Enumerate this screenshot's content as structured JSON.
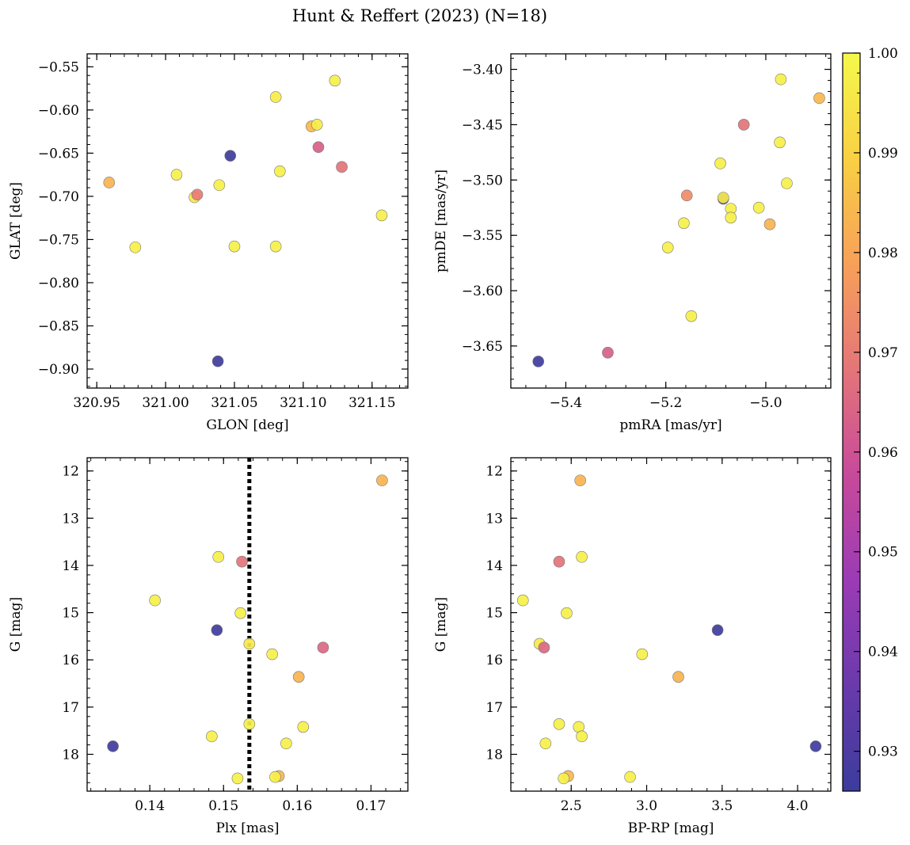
{
  "figure": {
    "title": "Hunt & Reffert (2023) (N=18)"
  },
  "colorbar": {
    "label": "",
    "range": [
      0.926,
      1.0
    ],
    "ticks": [
      "0.93",
      "0.94",
      "0.95",
      "0.96",
      "0.97",
      "0.98",
      "0.99",
      "1.00"
    ],
    "tick_values": [
      0.93,
      0.94,
      0.95,
      0.96,
      0.97,
      0.98,
      0.99,
      1.0
    ],
    "colormap": "plasma",
    "stops": [
      "#3b3c9c",
      "#6a3aab",
      "#9b3bb5",
      "#c74a9a",
      "#e47579",
      "#f7a059",
      "#f9d043",
      "#f5f84c"
    ]
  },
  "chart_data": [
    {
      "id": "glon_glat",
      "type": "scatter",
      "title": "",
      "xlabel": "GLON [deg]",
      "ylabel": "GLAT [deg]",
      "xlim": [
        320.943,
        321.176
      ],
      "ylim": [
        -0.922,
        -0.535
      ],
      "y_inverted": false,
      "xticks": [
        "320.95",
        "321.00",
        "321.05",
        "321.10",
        "321.15"
      ],
      "xtick_values": [
        320.95,
        321.0,
        321.05,
        321.1,
        321.15
      ],
      "yticks": [
        "−0.55",
        "−0.60",
        "−0.65",
        "−0.70",
        "−0.75",
        "−0.80",
        "−0.85",
        "−0.90"
      ],
      "ytick_values": [
        -0.55,
        -0.6,
        -0.65,
        -0.7,
        -0.75,
        -0.8,
        -0.85,
        -0.9
      ],
      "points": [
        {
          "x": 320.959,
          "y": -0.684,
          "c": 0.983
        },
        {
          "x": 320.978,
          "y": -0.759,
          "c": 0.998
        },
        {
          "x": 321.008,
          "y": -0.675,
          "c": 0.998
        },
        {
          "x": 321.021,
          "y": -0.701,
          "c": 0.996
        },
        {
          "x": 321.023,
          "y": -0.698,
          "c": 0.97
        },
        {
          "x": 321.039,
          "y": -0.687,
          "c": 0.998
        },
        {
          "x": 321.047,
          "y": -0.653,
          "c": 0.927
        },
        {
          "x": 321.05,
          "y": -0.758,
          "c": 0.998
        },
        {
          "x": 321.038,
          "y": -0.891,
          "c": 0.927
        },
        {
          "x": 321.08,
          "y": -0.585,
          "c": 0.997
        },
        {
          "x": 321.083,
          "y": -0.671,
          "c": 0.998
        },
        {
          "x": 321.08,
          "y": -0.758,
          "c": 0.998
        },
        {
          "x": 321.106,
          "y": -0.619,
          "c": 0.984
        },
        {
          "x": 321.11,
          "y": -0.617,
          "c": 0.997
        },
        {
          "x": 321.111,
          "y": -0.643,
          "c": 0.963
        },
        {
          "x": 321.123,
          "y": -0.566,
          "c": 0.998
        },
        {
          "x": 321.128,
          "y": -0.666,
          "c": 0.968
        },
        {
          "x": 321.157,
          "y": -0.722,
          "c": 0.998
        }
      ]
    },
    {
      "id": "pm",
      "type": "scatter",
      "title": "",
      "xlabel": "pmRA [mas/yr]",
      "ylabel": "pmDE [mas/yr]",
      "xlim": [
        -5.51,
        -4.87
      ],
      "ylim": [
        -3.688,
        -3.386
      ],
      "y_inverted": false,
      "xticks": [
        "−5.4",
        "−5.2",
        "−5.0"
      ],
      "xtick_values": [
        -5.4,
        -5.2,
        -5.0
      ],
      "yticks": [
        "−3.40",
        "−3.45",
        "−3.50",
        "−3.55",
        "−3.60",
        "−3.65"
      ],
      "ytick_values": [
        -3.4,
        -3.45,
        -3.5,
        -3.55,
        -3.6,
        -3.65
      ],
      "points": [
        {
          "x": -5.455,
          "y": -3.664,
          "c": 0.927
        },
        {
          "x": -5.316,
          "y": -3.656,
          "c": 0.963
        },
        {
          "x": -5.196,
          "y": -3.561,
          "c": 0.998
        },
        {
          "x": -5.164,
          "y": -3.539,
          "c": 0.998
        },
        {
          "x": -5.158,
          "y": -3.514,
          "c": 0.974
        },
        {
          "x": -5.149,
          "y": -3.623,
          "c": 0.998
        },
        {
          "x": -5.091,
          "y": -3.485,
          "c": 0.998
        },
        {
          "x": -5.085,
          "y": -3.517,
          "c": 0.927
        },
        {
          "x": -5.085,
          "y": -3.516,
          "c": 0.996
        },
        {
          "x": -5.07,
          "y": -3.526,
          "c": 0.998
        },
        {
          "x": -5.07,
          "y": -3.534,
          "c": 0.998
        },
        {
          "x": -5.044,
          "y": -3.45,
          "c": 0.968
        },
        {
          "x": -5.014,
          "y": -3.525,
          "c": 0.998
        },
        {
          "x": -4.992,
          "y": -3.54,
          "c": 0.983
        },
        {
          "x": -4.97,
          "y": -3.409,
          "c": 0.998
        },
        {
          "x": -4.972,
          "y": -3.466,
          "c": 0.998
        },
        {
          "x": -4.958,
          "y": -3.503,
          "c": 0.998
        },
        {
          "x": -4.893,
          "y": -3.426,
          "c": 0.984
        }
      ]
    },
    {
      "id": "plx_g",
      "type": "scatter",
      "title": "",
      "xlabel": "Plx [mas]",
      "ylabel": "G [mag]",
      "xlim": [
        0.1315,
        0.175
      ],
      "ylim": [
        18.78,
        11.72
      ],
      "y_inverted": true,
      "xticks": [
        "0.14",
        "0.15",
        "0.16",
        "0.17"
      ],
      "xtick_values": [
        0.14,
        0.15,
        0.16,
        0.17
      ],
      "yticks": [
        "12",
        "13",
        "14",
        "15",
        "16",
        "17",
        "18"
      ],
      "ytick_values": [
        12,
        13,
        14,
        15,
        16,
        17,
        18
      ],
      "vline": {
        "x": 0.1535,
        "style": "dotted"
      },
      "points": [
        {
          "x": 0.1715,
          "y": 12.2,
          "c": 0.983
        },
        {
          "x": 0.1493,
          "y": 13.82,
          "c": 0.998
        },
        {
          "x": 0.1525,
          "y": 13.92,
          "c": 0.968
        },
        {
          "x": 0.1407,
          "y": 14.74,
          "c": 0.998
        },
        {
          "x": 0.1523,
          "y": 15.01,
          "c": 0.998
        },
        {
          "x": 0.1491,
          "y": 15.37,
          "c": 0.927
        },
        {
          "x": 0.1535,
          "y": 15.66,
          "c": 0.996
        },
        {
          "x": 0.1635,
          "y": 15.74,
          "c": 0.965
        },
        {
          "x": 0.1566,
          "y": 15.88,
          "c": 0.998
        },
        {
          "x": 0.1602,
          "y": 16.36,
          "c": 0.983
        },
        {
          "x": 0.1535,
          "y": 17.36,
          "c": 0.998
        },
        {
          "x": 0.1608,
          "y": 17.42,
          "c": 0.998
        },
        {
          "x": 0.1484,
          "y": 17.62,
          "c": 0.998
        },
        {
          "x": 0.1585,
          "y": 17.77,
          "c": 0.998
        },
        {
          "x": 0.135,
          "y": 17.83,
          "c": 0.927
        },
        {
          "x": 0.1575,
          "y": 18.46,
          "c": 0.984
        },
        {
          "x": 0.157,
          "y": 18.48,
          "c": 0.998
        },
        {
          "x": 0.1519,
          "y": 18.51,
          "c": 0.998
        }
      ]
    },
    {
      "id": "cmd",
      "type": "scatter",
      "title": "",
      "xlabel": "BP-RP [mag]",
      "ylabel": "G [mag]",
      "xlim": [
        2.1,
        4.22
      ],
      "ylim": [
        18.78,
        11.72
      ],
      "y_inverted": true,
      "xticks": [
        "2.5",
        "3.0",
        "3.5",
        "4.0"
      ],
      "xtick_values": [
        2.5,
        3.0,
        3.5,
        4.0
      ],
      "yticks": [
        "12",
        "13",
        "14",
        "15",
        "16",
        "17",
        "18"
      ],
      "ytick_values": [
        12,
        13,
        14,
        15,
        16,
        17,
        18
      ],
      "points": [
        {
          "x": 2.56,
          "y": 12.2,
          "c": 0.983
        },
        {
          "x": 2.57,
          "y": 13.82,
          "c": 0.998
        },
        {
          "x": 2.42,
          "y": 13.92,
          "c": 0.968
        },
        {
          "x": 2.18,
          "y": 14.74,
          "c": 0.998
        },
        {
          "x": 2.47,
          "y": 15.01,
          "c": 0.998
        },
        {
          "x": 3.47,
          "y": 15.37,
          "c": 0.927
        },
        {
          "x": 2.29,
          "y": 15.66,
          "c": 0.996
        },
        {
          "x": 2.32,
          "y": 15.74,
          "c": 0.965
        },
        {
          "x": 2.97,
          "y": 15.88,
          "c": 0.998
        },
        {
          "x": 3.21,
          "y": 16.36,
          "c": 0.983
        },
        {
          "x": 2.42,
          "y": 17.36,
          "c": 0.998
        },
        {
          "x": 2.55,
          "y": 17.42,
          "c": 0.998
        },
        {
          "x": 2.57,
          "y": 17.62,
          "c": 0.998
        },
        {
          "x": 2.33,
          "y": 17.77,
          "c": 0.998
        },
        {
          "x": 4.12,
          "y": 17.83,
          "c": 0.927
        },
        {
          "x": 2.48,
          "y": 18.46,
          "c": 0.984
        },
        {
          "x": 2.45,
          "y": 18.51,
          "c": 0.998
        },
        {
          "x": 2.89,
          "y": 18.48,
          "c": 0.998
        }
      ]
    }
  ]
}
